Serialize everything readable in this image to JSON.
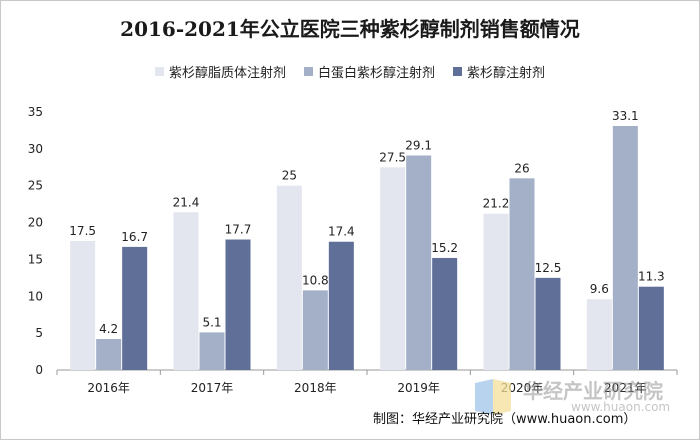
{
  "chart_data": {
    "type": "bar",
    "title": "2016-2021年公立医院三种紫杉醇制剂销售额情况",
    "categories": [
      "2016年",
      "2017年",
      "2018年",
      "2019年",
      "2020年",
      "2021年"
    ],
    "series": [
      {
        "name": "紫杉醇脂质体注射剂",
        "color": "#e3e6ee",
        "values": [
          17.5,
          21.4,
          25,
          27.5,
          21.2,
          9.6
        ]
      },
      {
        "name": "白蛋白紫杉醇注射剂",
        "color": "#a3b0c8",
        "values": [
          4.2,
          5.1,
          10.8,
          29.1,
          26,
          33.1
        ]
      },
      {
        "name": "紫杉醇注射剂",
        "color": "#5f6f98",
        "values": [
          16.7,
          17.7,
          17.4,
          15.2,
          12.5,
          11.3
        ]
      }
    ],
    "ylim": [
      0,
      35
    ],
    "yticks": [
      0,
      5,
      10,
      15,
      20,
      25,
      30,
      35
    ],
    "xlabel": "",
    "ylabel": "",
    "grid": false,
    "legend": "top"
  },
  "source": "制图：华经产业研究院（www.huaon.com）",
  "watermark": {
    "name": "华经产业研究院",
    "url": "www.huaon.com"
  }
}
